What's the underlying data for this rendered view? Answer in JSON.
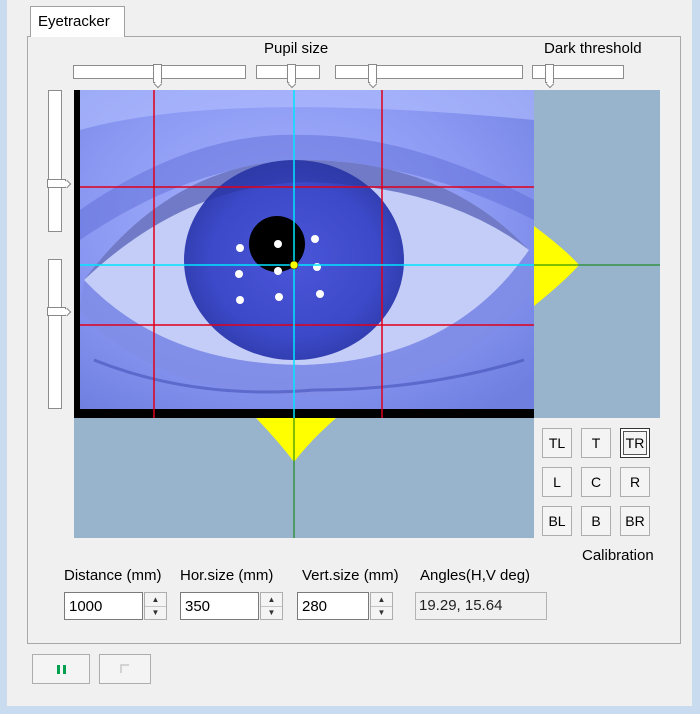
{
  "tab": {
    "label": "Eyetracker"
  },
  "sliders": {
    "pupil_size_label": "Pupil size",
    "dark_threshold_label": "Dark threshold"
  },
  "calibration": {
    "label": "Calibration",
    "buttons": [
      "TL",
      "T",
      "TR",
      "L",
      "C",
      "R",
      "BL",
      "B",
      "BR"
    ],
    "selected": "TR"
  },
  "measurements": {
    "distance": {
      "label": "Distance (mm)",
      "value": "1000"
    },
    "hor_size": {
      "label": "Hor.size (mm)",
      "value": "350"
    },
    "vert_size": {
      "label": "Vert.size (mm)",
      "value": "280"
    },
    "angles": {
      "label": "Angles(H,V deg)",
      "value": "19.29, 15.64"
    }
  },
  "colors": {
    "grid_red": "#e0001a",
    "crosshair_cyan": "#00e5ff",
    "histogram_yellow": "#ffff00",
    "axis_green": "#008000",
    "panel_blue": "#98b3cc",
    "pause_green": "#00a050"
  }
}
